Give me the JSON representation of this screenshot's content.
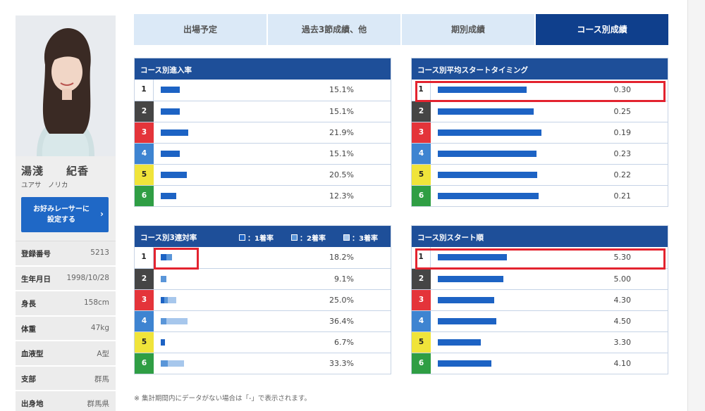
{
  "racer": {
    "name": "湯淺　　紀香",
    "kana": "ユアサ　ノリカ",
    "favorite_button": [
      "お好みレーサーに",
      "設定する"
    ],
    "info": [
      {
        "label": "登録番号",
        "value": "5213"
      },
      {
        "label": "生年月日",
        "value": "1998/10/28"
      },
      {
        "label": "身長",
        "value": "158cm"
      },
      {
        "label": "体重",
        "value": "47kg"
      },
      {
        "label": "血液型",
        "value": "A型"
      },
      {
        "label": "支部",
        "value": "群馬"
      },
      {
        "label": "出身地",
        "value": "群馬県"
      }
    ]
  },
  "tabs": [
    {
      "label": "出場予定",
      "active": false
    },
    {
      "label": "過去3節成績、他",
      "active": false
    },
    {
      "label": "期別成績",
      "active": false
    },
    {
      "label": "コース別成績",
      "active": true
    }
  ],
  "colors": {
    "accent": "#1e4f99",
    "active_tab": "#0f3f8c",
    "highlight": "#e3232f"
  },
  "panels": {
    "entry_rate": {
      "title": "コース別進入率",
      "rows": [
        {
          "course": "1",
          "value": "15.1%",
          "bar": 15.1
        },
        {
          "course": "2",
          "value": "15.1%",
          "bar": 15.1
        },
        {
          "course": "3",
          "value": "21.9%",
          "bar": 21.9
        },
        {
          "course": "4",
          "value": "15.1%",
          "bar": 15.1
        },
        {
          "course": "5",
          "value": "20.5%",
          "bar": 20.5
        },
        {
          "course": "6",
          "value": "12.3%",
          "bar": 12.3
        }
      ]
    },
    "start_timing": {
      "title": "コース別平均スタートタイミング",
      "rows": [
        {
          "course": "1",
          "value": "0.30",
          "bar": 0.3
        },
        {
          "course": "2",
          "value": "0.25",
          "bar": 0.25
        },
        {
          "course": "3",
          "value": "0.19",
          "bar": 0.19
        },
        {
          "course": "4",
          "value": "0.23",
          "bar": 0.23
        },
        {
          "course": "5",
          "value": "0.22",
          "bar": 0.22
        },
        {
          "course": "6",
          "value": "0.21",
          "bar": 0.21
        }
      ]
    },
    "top3_rate": {
      "title": "コース別3連対率",
      "legend": [
        "：1着率",
        "：2着率",
        "：3着率"
      ],
      "rows": [
        {
          "course": "1",
          "value": "18.2%",
          "parts": [
            8,
            8,
            0
          ]
        },
        {
          "course": "2",
          "value": "9.1%",
          "parts": [
            0,
            8,
            0
          ]
        },
        {
          "course": "3",
          "value": "25.0%",
          "parts": [
            5,
            5,
            12
          ]
        },
        {
          "course": "4",
          "value": "36.4%",
          "parts": [
            0,
            8,
            30
          ]
        },
        {
          "course": "5",
          "value": "6.7%",
          "parts": [
            6,
            0,
            0
          ]
        },
        {
          "course": "6",
          "value": "33.3%",
          "parts": [
            0,
            10,
            23
          ]
        }
      ]
    },
    "start_order": {
      "title": "コース別スタート順",
      "rows": [
        {
          "course": "1",
          "value": "5.30",
          "bar": 5.3
        },
        {
          "course": "2",
          "value": "5.00",
          "bar": 5.0
        },
        {
          "course": "3",
          "value": "4.30",
          "bar": 4.3
        },
        {
          "course": "4",
          "value": "4.50",
          "bar": 4.5
        },
        {
          "course": "5",
          "value": "3.30",
          "bar": 3.3
        },
        {
          "course": "6",
          "value": "4.10",
          "bar": 4.1
        }
      ]
    }
  },
  "note": "※ 集計期間内にデータがない場合は「-」で表示されます。"
}
